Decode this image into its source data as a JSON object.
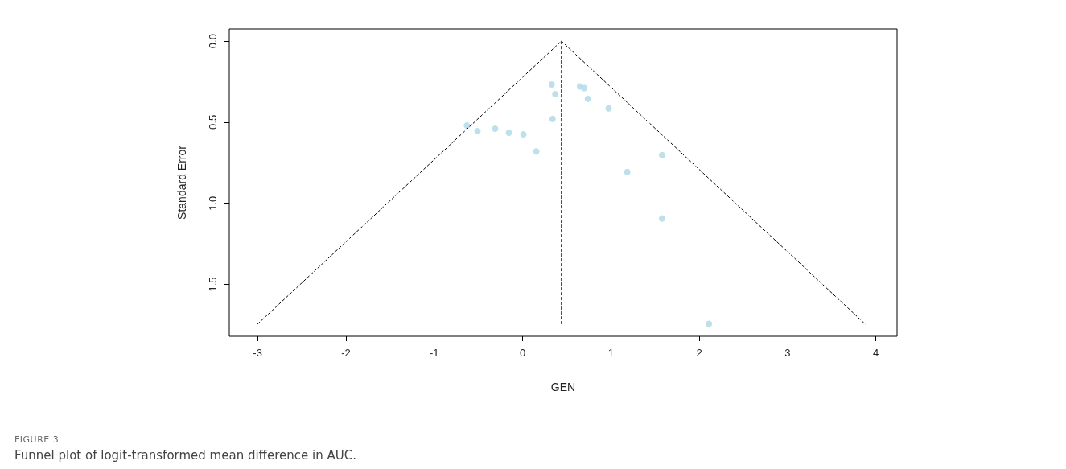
{
  "chart_data": {
    "type": "scatter",
    "xlabel": "GEN",
    "ylabel": "Standard Error",
    "annotations": [
      "FIGURE 3",
      "Funnel plot of logit-transformed mean difference in AUC."
    ],
    "xlim": [
      -3.32,
      4.24
    ],
    "xticks": [
      -3,
      -2,
      -1,
      0,
      1,
      2,
      3,
      4
    ],
    "ylim": [
      1.82,
      -0.075
    ],
    "yticks": [
      {
        "value": 0,
        "label": "0.0"
      },
      {
        "value": 0.5,
        "label": "0.5"
      },
      {
        "value": 1,
        "label": "1.0"
      },
      {
        "value": 1.5,
        "label": "1.5"
      }
    ],
    "grid": false,
    "series": [
      {
        "color": "#add8e6",
        "marker": "circle",
        "x": [
          -0.63,
          -0.51,
          -0.31,
          -0.155,
          0.01,
          0.155,
          0.33,
          0.37,
          0.34,
          0.65,
          0.7,
          0.74,
          0.975,
          1.185,
          1.58,
          1.58,
          2.11
        ],
        "values": [
          0.52,
          0.555,
          0.54,
          0.565,
          0.575,
          0.68,
          0.267,
          0.327,
          0.48,
          0.28,
          0.29,
          0.356,
          0.415,
          0.807,
          0.703,
          1.094,
          1.743
        ]
      },
      {
        "type": "line",
        "color": "#000000",
        "marker": "none",
        "line_style": "dashed",
        "x": [
          -3.0,
          0.44,
          3.88
        ],
        "values": [
          1.745,
          0,
          1.745
        ]
      },
      {
        "type": "line",
        "color": "#000000",
        "marker": "none",
        "line_style": "dashed",
        "x": [
          0.44,
          0.44
        ],
        "values": [
          0,
          1.745
        ]
      }
    ]
  }
}
